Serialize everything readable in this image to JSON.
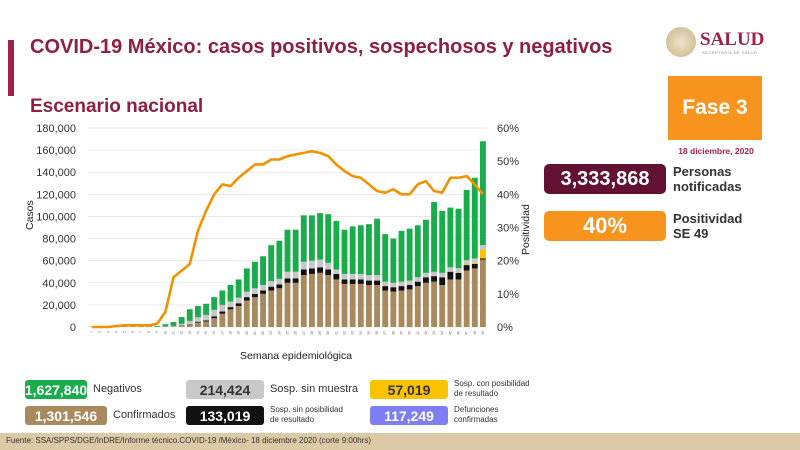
{
  "header": {
    "title": "COVID-19 México: casos positivos, sospechosos y negativos",
    "subtitle": "Escenario nacional"
  },
  "logo": {
    "name": "SALUD",
    "subtitle": "SECRETARÍA DE SALUD"
  },
  "phase": {
    "label": "Fase 3",
    "date": "18 diciembre, 2020"
  },
  "kpis": {
    "notified": {
      "value": "3,333,868",
      "label_1": "Personas",
      "label_2": "notificadas"
    },
    "positivity": {
      "value": "40%",
      "label_1": "Positividad",
      "label_2": "SE 49"
    }
  },
  "legend": [
    {
      "value": "1,627,840",
      "label": "Negativos",
      "color": "#1aab4b"
    },
    {
      "value": "214,424",
      "label": "Sosp. sin muestra",
      "color": "#c8c8c8"
    },
    {
      "value": "57,019",
      "label_1": "Sosp. con posibilidad",
      "label_2": "de resultado",
      "color": "#fbc200"
    },
    {
      "value": "1,301,546",
      "label": "Confirmados",
      "color": "#a98a5f"
    },
    {
      "value": "133,019",
      "label_1": "Sosp. sin posibilidad",
      "label_2": "de resultado",
      "color": "#111111"
    },
    {
      "value": "117,249",
      "label_1": "Defunciones",
      "label_2": "confirmadas",
      "color": "#7d7ef5"
    }
  ],
  "footer": "Fuente: SSA/SPPS/DGE/InDRE/Informe técnico.COVID-19 /México- 18 diciembre 2020 (corte 9:00hrs)",
  "chart_data": {
    "type": "bar",
    "stacked": true,
    "xlabel": "Semana epidemiológica",
    "ylabel": "Casos",
    "y2label": "Positividad",
    "ylim": [
      0,
      180000
    ],
    "y2lim": [
      0,
      60
    ],
    "yticks": [
      "0",
      "20,000",
      "40,000",
      "60,000",
      "80,000",
      "100,000",
      "120,000",
      "140,000",
      "160,000",
      "180,000"
    ],
    "y2ticks": [
      "0%",
      "10%",
      "20%",
      "30%",
      "40%",
      "50%",
      "60%"
    ],
    "grid": true,
    "categories": [
      1,
      2,
      3,
      4,
      5,
      6,
      7,
      8,
      9,
      10,
      11,
      12,
      13,
      14,
      15,
      16,
      17,
      18,
      19,
      20,
      21,
      22,
      23,
      24,
      25,
      26,
      27,
      28,
      29,
      30,
      31,
      32,
      33,
      34,
      35,
      36,
      37,
      38,
      39,
      40,
      41,
      42,
      43,
      44,
      45,
      46,
      47,
      48,
      49
    ],
    "series": [
      {
        "name": "Confirmados",
        "color": "#a98a5f",
        "values": [
          0,
          0,
          0,
          0,
          0,
          0,
          0,
          0,
          0,
          300,
          500,
          1000,
          2000,
          4000,
          5000,
          8000,
          12000,
          16000,
          19000,
          24000,
          27000,
          30000,
          33000,
          35000,
          40000,
          40000,
          47000,
          48000,
          49000,
          47000,
          43000,
          39000,
          39000,
          39000,
          38000,
          38000,
          33000,
          32000,
          33000,
          34000,
          37000,
          40000,
          41000,
          38000,
          43000,
          43000,
          51000,
          53000,
          61000
        ]
      },
      {
        "name": "Sosp. sin posibilidad de resultado",
        "color": "#111111",
        "values": [
          0,
          0,
          0,
          0,
          0,
          0,
          0,
          0,
          0,
          0,
          0,
          300,
          500,
          800,
          1000,
          1500,
          2000,
          2000,
          2500,
          3000,
          3000,
          3000,
          3500,
          3500,
          4000,
          4000,
          5000,
          5000,
          5000,
          5000,
          5000,
          4000,
          4000,
          4000,
          4000,
          4000,
          4000,
          4000,
          4000,
          4000,
          4000,
          5000,
          5000,
          7000,
          7000,
          6000,
          5000,
          4000,
          1000
        ]
      },
      {
        "name": "Sosp. con posibilidad de resultado",
        "color": "#fbc200",
        "values": [
          0,
          0,
          0,
          0,
          0,
          0,
          0,
          0,
          0,
          0,
          0,
          0,
          0,
          0,
          0,
          0,
          0,
          0,
          0,
          0,
          0,
          0,
          0,
          0,
          0,
          0,
          0,
          0,
          0,
          0,
          0,
          0,
          0,
          0,
          0,
          0,
          0,
          0,
          0,
          0,
          0,
          0,
          0,
          0,
          0,
          300,
          500,
          1000,
          8000
        ]
      },
      {
        "name": "Sosp. sin muestra",
        "color": "#c8c8c8",
        "values": [
          200,
          200,
          200,
          200,
          200,
          200,
          200,
          200,
          200,
          200,
          500,
          1500,
          3000,
          4000,
          5000,
          6000,
          6000,
          5000,
          5000,
          5000,
          5000,
          5000,
          5000,
          5000,
          6000,
          6000,
          7000,
          7000,
          7000,
          6000,
          4000,
          5000,
          5000,
          5000,
          5000,
          5000,
          4000,
          4000,
          4000,
          4000,
          4000,
          4000,
          4000,
          4000,
          4000,
          4000,
          4000,
          4000,
          4000
        ]
      },
      {
        "name": "Negativos",
        "color": "#1aab4b",
        "values": [
          100,
          300,
          800,
          800,
          800,
          800,
          800,
          800,
          800,
          2000,
          3500,
          6200,
          10500,
          10200,
          10000,
          11500,
          13000,
          15000,
          16500,
          21000,
          24000,
          26000,
          32500,
          34500,
          38000,
          38000,
          42000,
          41000,
          42000,
          44000,
          44000,
          40000,
          43000,
          44000,
          46000,
          51000,
          43000,
          40000,
          46000,
          47000,
          47000,
          48000,
          63000,
          56000,
          54000,
          53700,
          63500,
          73000,
          94000
        ]
      }
    ],
    "line": {
      "name": "Positividad",
      "color": "#f39200",
      "axis": "right",
      "values": [
        0,
        0,
        0,
        0.3,
        0.5,
        0.5,
        0.5,
        0.5,
        1,
        4.5,
        15,
        17,
        19,
        29,
        35,
        40,
        43,
        42.5,
        45,
        47,
        49,
        49,
        50.5,
        50.5,
        51.5,
        52,
        52.5,
        53,
        52.5,
        51.5,
        49,
        47,
        45.5,
        45,
        43,
        41,
        40.5,
        41.5,
        40,
        40,
        43,
        44,
        41,
        40.5,
        45,
        45,
        45.5,
        43,
        40
      ]
    }
  }
}
